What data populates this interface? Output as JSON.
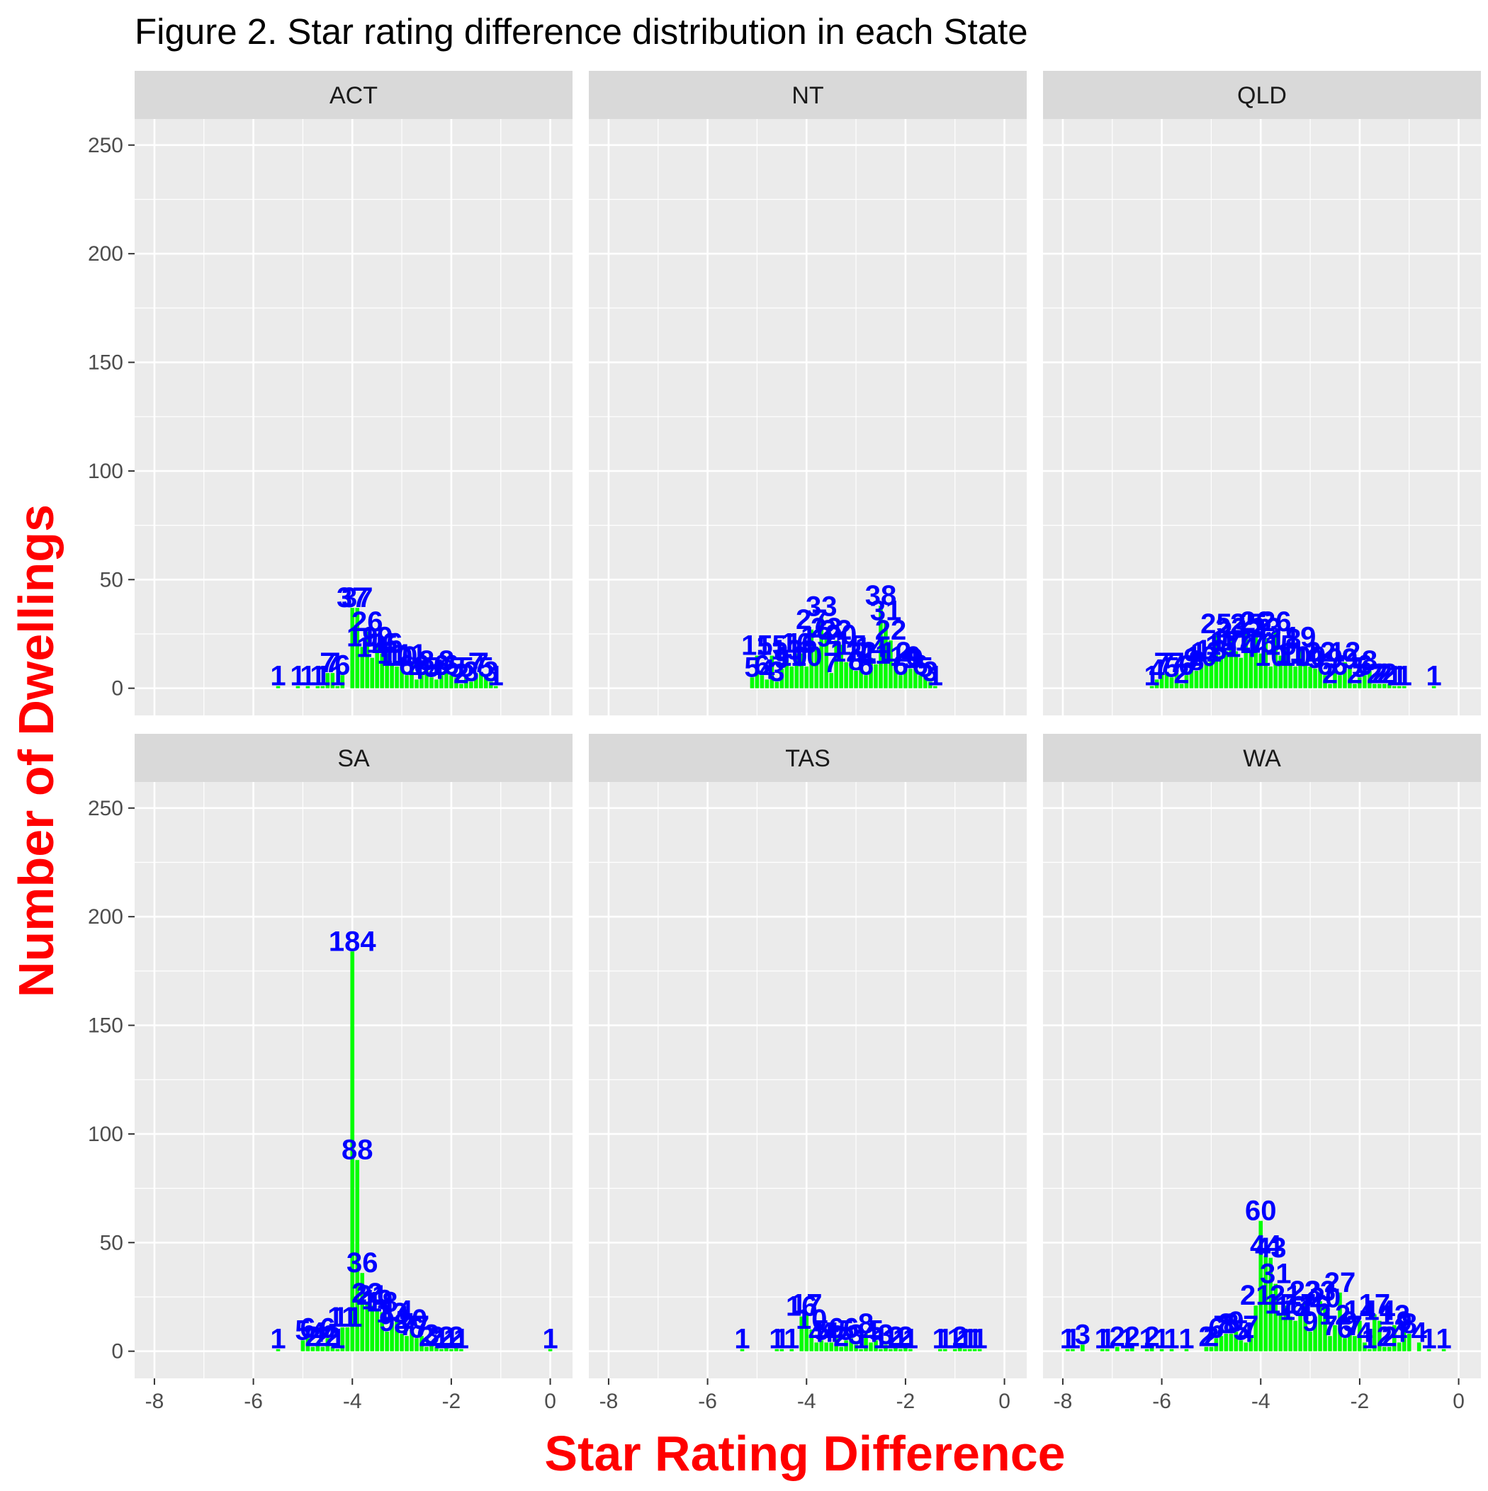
{
  "colors": {
    "bar": "#00ff00",
    "label": "#0000ff",
    "axis_title": "#ff0000",
    "panel_bg": "#ebebeb",
    "strip_bg": "#d9d9d9",
    "grid": "#ffffff"
  },
  "chart_data": {
    "type": "bar",
    "title": "Figure 2. Star rating difference distribution in each State",
    "xlabel": "Star Rating Difference",
    "ylabel": "Number of Dwellings",
    "xlim": [
      -8.4,
      0.45
    ],
    "ylim": [
      -12.5,
      262
    ],
    "x_ticks": [
      -8,
      -6,
      -4,
      -2,
      0
    ],
    "x_tick_labels": [
      "-8",
      "-6",
      "-4",
      "-2",
      "0"
    ],
    "y_ticks": [
      0,
      50,
      100,
      150,
      200,
      250
    ],
    "y_tick_labels": [
      "0",
      "50",
      "100",
      "150",
      "200",
      "250"
    ],
    "grid": true,
    "bar_width": 0.08,
    "panels": [
      {
        "state": "ACT",
        "x": [
          -5.5,
          -5.1,
          -4.9,
          -4.7,
          -4.6,
          -4.5,
          -4.4,
          -4.3,
          -4.2,
          -4.0,
          -3.9,
          -3.8,
          -3.7,
          -3.6,
          -3.5,
          -3.4,
          -3.3,
          -3.2,
          -3.1,
          -3.0,
          -2.9,
          -2.8,
          -2.7,
          -2.6,
          -2.5,
          -2.4,
          -2.3,
          -2.2,
          -2.1,
          -2.0,
          -1.9,
          -1.8,
          -1.7,
          -1.6,
          -1.5,
          -1.4,
          -1.3,
          -1.2,
          -1.1
        ],
        "values": [
          1,
          1,
          1,
          1,
          1,
          7,
          7,
          1,
          6,
          37,
          37,
          19,
          26,
          14,
          19,
          16,
          16,
          11,
          10,
          10,
          6,
          11,
          4,
          6,
          8,
          5,
          4,
          6,
          8,
          6,
          5,
          2,
          5,
          3,
          7,
          7,
          5,
          3,
          1
        ]
      },
      {
        "state": "NT",
        "x": [
          -5.1,
          -5.0,
          -4.9,
          -4.8,
          -4.7,
          -4.6,
          -4.5,
          -4.4,
          -4.3,
          -4.2,
          -4.1,
          -4.0,
          -3.9,
          -3.8,
          -3.7,
          -3.6,
          -3.5,
          -3.4,
          -3.3,
          -3.2,
          -3.1,
          -3.0,
          -2.9,
          -2.8,
          -2.7,
          -2.6,
          -2.5,
          -2.4,
          -2.3,
          -2.2,
          -2.1,
          -2.0,
          -1.9,
          -1.8,
          -1.7,
          -1.6,
          -1.5,
          -1.4
        ],
        "values": [
          5,
          15,
          6,
          4,
          15,
          3,
          9,
          13,
          10,
          16,
          16,
          10,
          27,
          19,
          33,
          23,
          7,
          22,
          20,
          12,
          15,
          8,
          12,
          6,
          14,
          11,
          38,
          31,
          22,
          12,
          6,
          10,
          9,
          9,
          6,
          5,
          3,
          1
        ]
      },
      {
        "state": "QLD",
        "x": [
          -6.2,
          -6.1,
          -6.0,
          -5.9,
          -5.8,
          -5.7,
          -5.6,
          -5.5,
          -5.4,
          -5.3,
          -5.2,
          -5.1,
          -5.0,
          -4.9,
          -4.8,
          -4.7,
          -4.6,
          -4.5,
          -4.4,
          -4.3,
          -4.2,
          -4.1,
          -4.0,
          -3.9,
          -3.8,
          -3.7,
          -3.6,
          -3.5,
          -3.4,
          -3.3,
          -3.2,
          -3.1,
          -3.0,
          -2.9,
          -2.8,
          -2.7,
          -2.6,
          -2.5,
          -2.4,
          -2.3,
          -2.2,
          -2.1,
          -2.0,
          -1.9,
          -1.8,
          -1.7,
          -1.6,
          -1.5,
          -1.4,
          -1.3,
          -1.2,
          -1.1,
          -0.5
        ],
        "values": [
          1,
          4,
          7,
          7,
          5,
          7,
          2,
          6,
          9,
          8,
          10,
          12,
          13,
          25,
          15,
          17,
          23,
          17,
          14,
          25,
          17,
          26,
          16,
          23,
          10,
          26,
          15,
          18,
          11,
          10,
          19,
          12,
          10,
          9,
          12,
          6,
          2,
          9,
          6,
          12,
          9,
          2,
          5,
          6,
          8,
          2,
          2,
          2,
          2,
          1,
          1,
          1,
          1
        ]
      },
      {
        "state": "SA",
        "x": [
          -5.5,
          -5.0,
          -4.9,
          -4.8,
          -4.7,
          -4.6,
          -4.5,
          -4.4,
          -4.3,
          -4.2,
          -4.1,
          -4.0,
          -3.9,
          -3.8,
          -3.7,
          -3.6,
          -3.5,
          -3.4,
          -3.3,
          -3.2,
          -3.1,
          -3.0,
          -2.9,
          -2.8,
          -2.7,
          -2.6,
          -2.5,
          -2.4,
          -2.3,
          -2.2,
          -2.1,
          -2.0,
          -1.9,
          -1.8,
          0.0
        ],
        "values": [
          1,
          5,
          6,
          2,
          4,
          2,
          6,
          2,
          1,
          11,
          11,
          184,
          88,
          36,
          22,
          21,
          19,
          18,
          9,
          13,
          14,
          8,
          7,
          10,
          6,
          7,
          2,
          3,
          2,
          1,
          2,
          1,
          2,
          1,
          1
        ]
      },
      {
        "state": "TAS",
        "x": [
          -5.3,
          -4.6,
          -4.5,
          -4.3,
          -4.1,
          -4.0,
          -3.9,
          -3.8,
          -3.7,
          -3.6,
          -3.5,
          -3.4,
          -3.3,
          -3.2,
          -3.1,
          -3.0,
          -2.9,
          -2.8,
          -2.7,
          -2.6,
          -2.5,
          -2.4,
          -2.3,
          -2.2,
          -2.1,
          -2.0,
          -1.9,
          -1.3,
          -1.2,
          -1.0,
          -0.9,
          -0.8,
          -0.7,
          -0.6,
          -0.5
        ],
        "values": [
          1,
          1,
          1,
          1,
          16,
          17,
          10,
          4,
          5,
          4,
          4,
          6,
          2,
          5,
          6,
          3,
          1,
          8,
          4,
          5,
          1,
          3,
          1,
          2,
          1,
          2,
          1,
          1,
          1,
          1,
          2,
          1,
          1,
          1,
          1
        ]
      },
      {
        "state": "WA",
        "x": [
          -7.9,
          -7.8,
          -7.6,
          -7.2,
          -7.1,
          -6.9,
          -6.7,
          -6.6,
          -6.3,
          -6.2,
          -6.0,
          -5.8,
          -5.5,
          -5.1,
          -5.0,
          -4.9,
          -4.8,
          -4.7,
          -4.6,
          -4.5,
          -4.4,
          -4.3,
          -4.2,
          -4.1,
          -4.0,
          -3.9,
          -3.8,
          -3.7,
          -3.6,
          -3.5,
          -3.4,
          -3.3,
          -3.2,
          -3.1,
          -3.0,
          -2.9,
          -2.8,
          -2.7,
          -2.6,
          -2.5,
          -2.4,
          -2.3,
          -2.2,
          -2.1,
          -2.0,
          -1.9,
          -1.8,
          -1.7,
          -1.6,
          -1.5,
          -1.4,
          -1.3,
          -1.2,
          -1.1,
          -1.0,
          -0.8,
          -0.6,
          -0.3
        ],
        "values": [
          1,
          1,
          3,
          1,
          1,
          2,
          1,
          2,
          1,
          2,
          1,
          1,
          1,
          2,
          2,
          6,
          7,
          8,
          8,
          9,
          5,
          4,
          7,
          21,
          60,
          44,
          43,
          31,
          17,
          21,
          16,
          14,
          17,
          23,
          9,
          16,
          23,
          20,
          7,
          12,
          27,
          6,
          9,
          7,
          14,
          4,
          1,
          17,
          14,
          2,
          2,
          12,
          4,
          9,
          8,
          4,
          1,
          1
        ]
      }
    ]
  }
}
